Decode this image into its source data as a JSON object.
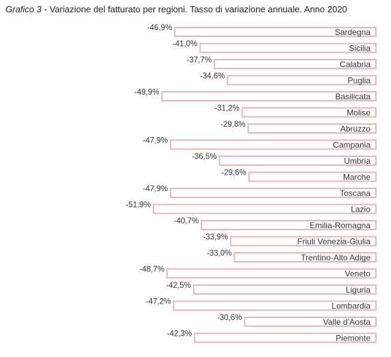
{
  "title": {
    "prefix": "Grafico 3",
    "separator": " - ",
    "text": "Variazione del fatturato per regioni. Tasso di variazione annuale. Anno 2020"
  },
  "colors": {
    "bar_border": "#e6b9b6",
    "bar_fill": "#ffffff",
    "text": "#333333"
  },
  "chart_data": {
    "type": "bar",
    "orientation": "horizontal",
    "title": "Variazione del fatturato per regioni. Tasso di variazione annuale. Anno 2020",
    "categories": [
      "Sardegna",
      "Sicilia",
      "Calabria",
      "Puglia",
      "Basilicata",
      "Molise",
      "Abruzzo",
      "Campania",
      "Umbria",
      "Marche",
      "Toscana",
      "Lazio",
      "Emilia-Romagna",
      "Friuli Venezia-Giulia",
      "Trentino-Alto Adige",
      "Veneto",
      "Liguria",
      "Lombardia",
      "Valle d’Aosta",
      "Piemonte"
    ],
    "values": [
      -46.9,
      -41.0,
      -37.7,
      -34.6,
      -49.9,
      -31.2,
      -29.8,
      -47.9,
      -36.5,
      -29.6,
      -47.9,
      -51.9,
      -40.7,
      -33.9,
      -33.0,
      -48.7,
      -42.5,
      -47.2,
      -30.6,
      -42.3
    ],
    "value_labels": [
      "-46,9%",
      "-41,0%",
      "-37,7%",
      "-34,6%",
      "-49,9%",
      "-31,2%",
      "-29,8%",
      "-47,9%",
      "-36,5%",
      "-29,6%",
      "-47,9%",
      "-51,9%",
      "-40,7%",
      "-33,9%",
      "-33,0%",
      "-48,7%",
      "-42,5%",
      "-47,2%",
      "-30,6%",
      "-42,3%"
    ],
    "xlim": [
      -60,
      0
    ],
    "grid": false,
    "legend": "none"
  }
}
